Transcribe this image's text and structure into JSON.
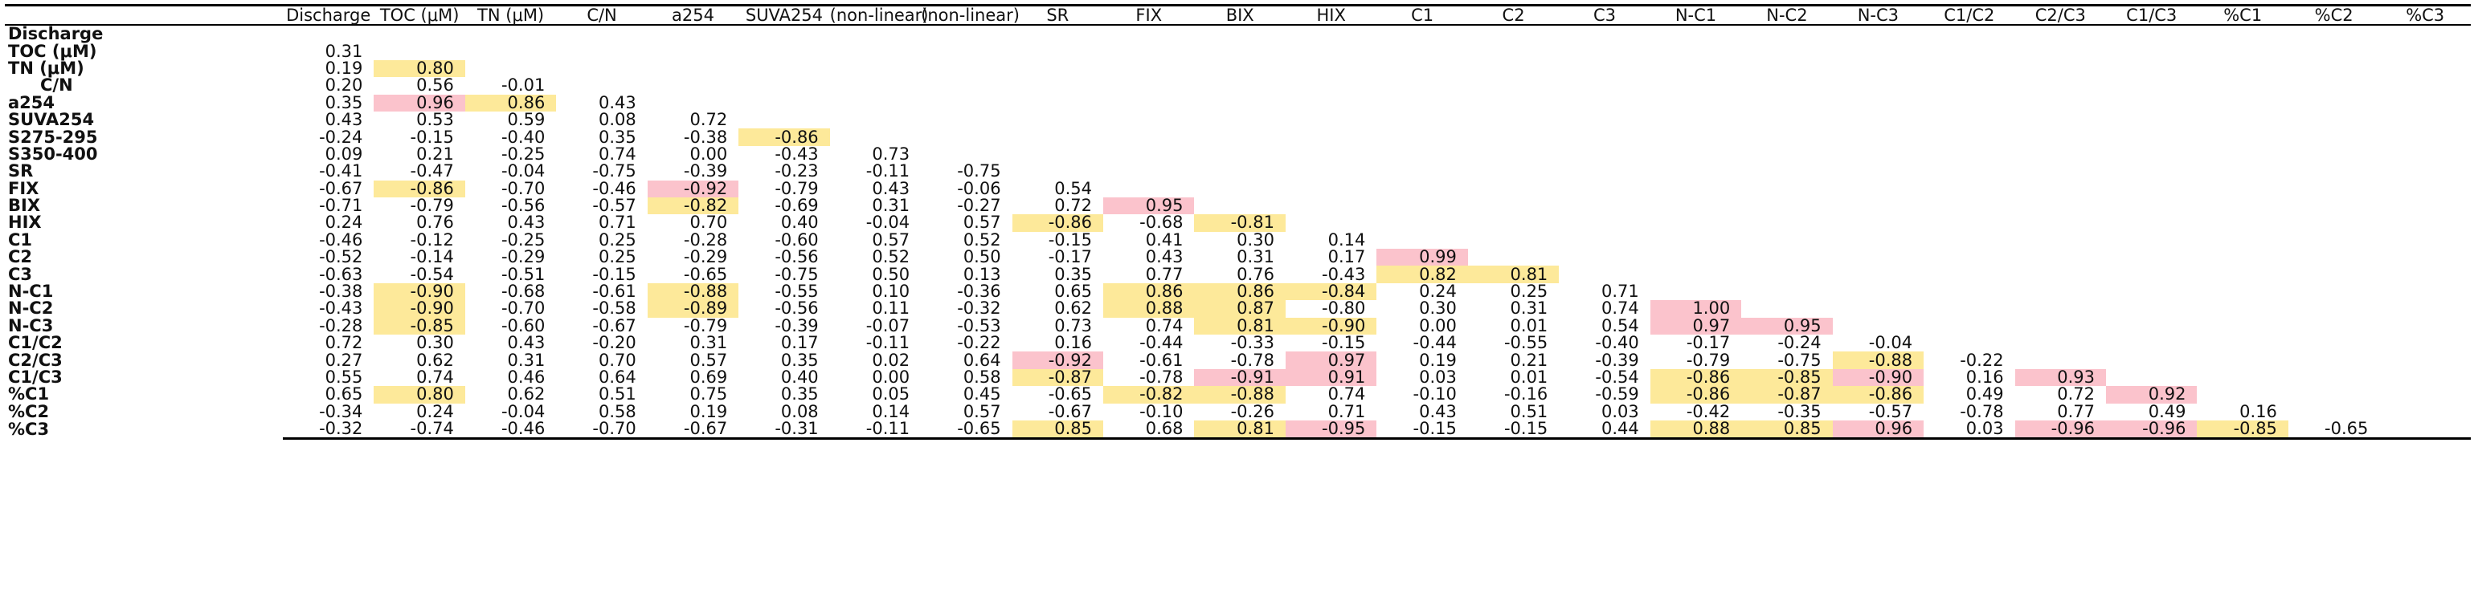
{
  "columns": [
    "Discharge",
    "TOC (μM)",
    "TN (μM)",
    "C/N",
    "a254",
    "SUVA254",
    "S275-295 (non-linear)",
    "S350-400 (non-linear)",
    "SR",
    "FIX",
    "BIX",
    "HIX",
    "C1",
    "C2",
    "C3",
    "N-C1",
    "N-C2",
    "N-C3",
    "C1/C2",
    "C2/C3",
    "C1/C3",
    "%C1",
    "%C2",
    "%C3"
  ],
  "column_display": [
    "Discharge",
    "TOC (μM)",
    "TN (μM)",
    "C/N",
    "a254",
    "SUVA254",
    "(non-linear)",
    "(non-linear)",
    "SR",
    "FIX",
    "BIX",
    "HIX",
    "C1",
    "C2",
    "C3",
    "N-C1",
    "N-C2",
    "N-C3",
    "C1/C2",
    "C2/C3",
    "C1/C3",
    "%C1",
    "%C2",
    "%C3"
  ],
  "rows": [
    {
      "label": "Discharge",
      "cells": []
    },
    {
      "label": "TOC (μM)",
      "cells": [
        {
          "v": "0.31"
        }
      ]
    },
    {
      "label": "TN (μM)",
      "cells": [
        {
          "v": "0.19"
        },
        {
          "v": "0.80",
          "h": "y"
        }
      ]
    },
    {
      "label": "C/N",
      "indent": true,
      "cells": [
        {
          "v": "0.20"
        },
        {
          "v": "0.56"
        },
        {
          "v": "-0.01"
        }
      ]
    },
    {
      "label": "a254",
      "cells": [
        {
          "v": "0.35"
        },
        {
          "v": "0.96",
          "h": "p"
        },
        {
          "v": "0.86",
          "h": "y"
        },
        {
          "v": "0.43"
        }
      ]
    },
    {
      "label": "SUVA254",
      "cells": [
        {
          "v": "0.43"
        },
        {
          "v": "0.53"
        },
        {
          "v": "0.59"
        },
        {
          "v": "0.08"
        },
        {
          "v": "0.72"
        }
      ]
    },
    {
      "label": "S275-295",
      "cells": [
        {
          "v": "-0.24"
        },
        {
          "v": "-0.15"
        },
        {
          "v": "-0.40"
        },
        {
          "v": "0.35"
        },
        {
          "v": "-0.38"
        },
        {
          "v": "-0.86",
          "h": "y"
        }
      ]
    },
    {
      "label": "S350-400",
      "cells": [
        {
          "v": "0.09"
        },
        {
          "v": "0.21"
        },
        {
          "v": "-0.25"
        },
        {
          "v": "0.74"
        },
        {
          "v": "0.00"
        },
        {
          "v": "-0.43"
        },
        {
          "v": "0.73"
        }
      ]
    },
    {
      "label": "SR",
      "cells": [
        {
          "v": "-0.41"
        },
        {
          "v": "-0.47"
        },
        {
          "v": "-0.04"
        },
        {
          "v": "-0.75"
        },
        {
          "v": "-0.39"
        },
        {
          "v": "-0.23"
        },
        {
          "v": "-0.11"
        },
        {
          "v": "-0.75"
        }
      ]
    },
    {
      "label": "FIX",
      "cells": [
        {
          "v": "-0.67"
        },
        {
          "v": "-0.86",
          "h": "y"
        },
        {
          "v": "-0.70"
        },
        {
          "v": "-0.46"
        },
        {
          "v": "-0.92",
          "h": "p"
        },
        {
          "v": "-0.79"
        },
        {
          "v": "0.43"
        },
        {
          "v": "-0.06"
        },
        {
          "v": "0.54"
        }
      ]
    },
    {
      "label": "BIX",
      "cells": [
        {
          "v": "-0.71"
        },
        {
          "v": "-0.79"
        },
        {
          "v": "-0.56"
        },
        {
          "v": "-0.57"
        },
        {
          "v": "-0.82",
          "h": "y"
        },
        {
          "v": "-0.69"
        },
        {
          "v": "0.31"
        },
        {
          "v": "-0.27"
        },
        {
          "v": "0.72"
        },
        {
          "v": "0.95",
          "h": "p"
        }
      ]
    },
    {
      "label": "HIX",
      "cells": [
        {
          "v": "0.24"
        },
        {
          "v": "0.76"
        },
        {
          "v": "0.43"
        },
        {
          "v": "0.71"
        },
        {
          "v": "0.70"
        },
        {
          "v": "0.40"
        },
        {
          "v": "-0.04"
        },
        {
          "v": "0.57"
        },
        {
          "v": "-0.86",
          "h": "y"
        },
        {
          "v": "-0.68"
        },
        {
          "v": "-0.81",
          "h": "y"
        }
      ]
    },
    {
      "label": "C1",
      "cells": [
        {
          "v": "-0.46"
        },
        {
          "v": "-0.12"
        },
        {
          "v": "-0.25"
        },
        {
          "v": "0.25"
        },
        {
          "v": "-0.28"
        },
        {
          "v": "-0.60"
        },
        {
          "v": "0.57"
        },
        {
          "v": "0.52"
        },
        {
          "v": "-0.15"
        },
        {
          "v": "0.41"
        },
        {
          "v": "0.30"
        },
        {
          "v": "0.14"
        }
      ]
    },
    {
      "label": "C2",
      "cells": [
        {
          "v": "-0.52"
        },
        {
          "v": "-0.14"
        },
        {
          "v": "-0.29"
        },
        {
          "v": "0.25"
        },
        {
          "v": "-0.29"
        },
        {
          "v": "-0.56"
        },
        {
          "v": "0.52"
        },
        {
          "v": "0.50"
        },
        {
          "v": "-0.17"
        },
        {
          "v": "0.43"
        },
        {
          "v": "0.31"
        },
        {
          "v": "0.17"
        },
        {
          "v": "0.99",
          "h": "p"
        }
      ]
    },
    {
      "label": "C3",
      "cells": [
        {
          "v": "-0.63"
        },
        {
          "v": "-0.54"
        },
        {
          "v": "-0.51"
        },
        {
          "v": "-0.15"
        },
        {
          "v": "-0.65"
        },
        {
          "v": "-0.75"
        },
        {
          "v": "0.50"
        },
        {
          "v": "0.13"
        },
        {
          "v": "0.35"
        },
        {
          "v": "0.77"
        },
        {
          "v": "0.76"
        },
        {
          "v": "-0.43"
        },
        {
          "v": "0.82",
          "h": "y"
        },
        {
          "v": "0.81",
          "h": "y"
        }
      ]
    },
    {
      "label": "N-C1",
      "cells": [
        {
          "v": "-0.38"
        },
        {
          "v": "-0.90",
          "h": "y"
        },
        {
          "v": "-0.68"
        },
        {
          "v": "-0.61"
        },
        {
          "v": "-0.88",
          "h": "y"
        },
        {
          "v": "-0.55"
        },
        {
          "v": "0.10"
        },
        {
          "v": "-0.36"
        },
        {
          "v": "0.65"
        },
        {
          "v": "0.86",
          "h": "y"
        },
        {
          "v": "0.86",
          "h": "y"
        },
        {
          "v": "-0.84",
          "h": "y"
        },
        {
          "v": "0.24"
        },
        {
          "v": "0.25"
        },
        {
          "v": "0.71"
        }
      ]
    },
    {
      "label": "N-C2",
      "cells": [
        {
          "v": "-0.43"
        },
        {
          "v": "-0.90",
          "h": "y"
        },
        {
          "v": "-0.70"
        },
        {
          "v": "-0.58"
        },
        {
          "v": "-0.89",
          "h": "y"
        },
        {
          "v": "-0.56"
        },
        {
          "v": "0.11"
        },
        {
          "v": "-0.32"
        },
        {
          "v": "0.62"
        },
        {
          "v": "0.88",
          "h": "y"
        },
        {
          "v": "0.87",
          "h": "y"
        },
        {
          "v": "-0.80"
        },
        {
          "v": "0.30"
        },
        {
          "v": "0.31"
        },
        {
          "v": "0.74"
        },
        {
          "v": "1.00",
          "h": "p"
        }
      ]
    },
    {
      "label": "N-C3",
      "cells": [
        {
          "v": "-0.28"
        },
        {
          "v": "-0.85",
          "h": "y"
        },
        {
          "v": "-0.60"
        },
        {
          "v": "-0.67"
        },
        {
          "v": "-0.79"
        },
        {
          "v": "-0.39"
        },
        {
          "v": "-0.07"
        },
        {
          "v": "-0.53"
        },
        {
          "v": "0.73"
        },
        {
          "v": "0.74"
        },
        {
          "v": "0.81",
          "h": "y"
        },
        {
          "v": "-0.90",
          "h": "y"
        },
        {
          "v": "0.00"
        },
        {
          "v": "0.01"
        },
        {
          "v": "0.54"
        },
        {
          "v": "0.97",
          "h": "p"
        },
        {
          "v": "0.95",
          "h": "p"
        }
      ]
    },
    {
      "label": "C1/C2",
      "cells": [
        {
          "v": "0.72"
        },
        {
          "v": "0.30"
        },
        {
          "v": "0.43"
        },
        {
          "v": "-0.20"
        },
        {
          "v": "0.31"
        },
        {
          "v": "0.17"
        },
        {
          "v": "-0.11"
        },
        {
          "v": "-0.22"
        },
        {
          "v": "0.16"
        },
        {
          "v": "-0.44"
        },
        {
          "v": "-0.33"
        },
        {
          "v": "-0.15"
        },
        {
          "v": "-0.44"
        },
        {
          "v": "-0.55"
        },
        {
          "v": "-0.40"
        },
        {
          "v": "-0.17"
        },
        {
          "v": "-0.24"
        },
        {
          "v": "-0.04"
        }
      ]
    },
    {
      "label": "C2/C3",
      "cells": [
        {
          "v": "0.27"
        },
        {
          "v": "0.62"
        },
        {
          "v": "0.31"
        },
        {
          "v": "0.70"
        },
        {
          "v": "0.57"
        },
        {
          "v": "0.35"
        },
        {
          "v": "0.02"
        },
        {
          "v": "0.64"
        },
        {
          "v": "-0.92",
          "h": "p"
        },
        {
          "v": "-0.61"
        },
        {
          "v": "-0.78"
        },
        {
          "v": "0.97",
          "h": "p"
        },
        {
          "v": "0.19"
        },
        {
          "v": "0.21"
        },
        {
          "v": "-0.39"
        },
        {
          "v": "-0.79"
        },
        {
          "v": "-0.75"
        },
        {
          "v": "-0.88",
          "h": "y"
        },
        {
          "v": "-0.22"
        }
      ]
    },
    {
      "label": "C1/C3",
      "cells": [
        {
          "v": "0.55"
        },
        {
          "v": "0.74"
        },
        {
          "v": "0.46"
        },
        {
          "v": "0.64"
        },
        {
          "v": "0.69"
        },
        {
          "v": "0.40"
        },
        {
          "v": "0.00"
        },
        {
          "v": "0.58"
        },
        {
          "v": "-0.87",
          "h": "y"
        },
        {
          "v": "-0.78"
        },
        {
          "v": "-0.91",
          "h": "p"
        },
        {
          "v": "0.91",
          "h": "p"
        },
        {
          "v": "0.03"
        },
        {
          "v": "0.01"
        },
        {
          "v": "-0.54"
        },
        {
          "v": "-0.86",
          "h": "y"
        },
        {
          "v": "-0.85",
          "h": "y"
        },
        {
          "v": "-0.90",
          "h": "p"
        },
        {
          "v": "0.16"
        },
        {
          "v": "0.93",
          "h": "p"
        }
      ]
    },
    {
      "label": "%C1",
      "cells": [
        {
          "v": "0.65"
        },
        {
          "v": "0.80",
          "h": "y"
        },
        {
          "v": "0.62"
        },
        {
          "v": "0.51"
        },
        {
          "v": "0.75"
        },
        {
          "v": "0.35"
        },
        {
          "v": "0.05"
        },
        {
          "v": "0.45"
        },
        {
          "v": "-0.65"
        },
        {
          "v": "-0.82",
          "h": "y"
        },
        {
          "v": "-0.88",
          "h": "y"
        },
        {
          "v": "0.74"
        },
        {
          "v": "-0.10"
        },
        {
          "v": "-0.16"
        },
        {
          "v": "-0.59"
        },
        {
          "v": "-0.86",
          "h": "y"
        },
        {
          "v": "-0.87",
          "h": "y"
        },
        {
          "v": "-0.86",
          "h": "y"
        },
        {
          "v": "0.49"
        },
        {
          "v": "0.72"
        },
        {
          "v": "0.92",
          "h": "p"
        }
      ]
    },
    {
      "label": "%C2",
      "cells": [
        {
          "v": "-0.34"
        },
        {
          "v": "0.24"
        },
        {
          "v": "-0.04"
        },
        {
          "v": "0.58"
        },
        {
          "v": "0.19"
        },
        {
          "v": "0.08"
        },
        {
          "v": "0.14"
        },
        {
          "v": "0.57"
        },
        {
          "v": "-0.67"
        },
        {
          "v": "-0.10"
        },
        {
          "v": "-0.26"
        },
        {
          "v": "0.71"
        },
        {
          "v": "0.43"
        },
        {
          "v": "0.51"
        },
        {
          "v": "0.03"
        },
        {
          "v": "-0.42"
        },
        {
          "v": "-0.35"
        },
        {
          "v": "-0.57"
        },
        {
          "v": "-0.78"
        },
        {
          "v": "0.77"
        },
        {
          "v": "0.49"
        },
        {
          "v": "0.16"
        }
      ]
    },
    {
      "label": "%C3",
      "cells": [
        {
          "v": "-0.32"
        },
        {
          "v": "-0.74"
        },
        {
          "v": "-0.46"
        },
        {
          "v": "-0.70"
        },
        {
          "v": "-0.67"
        },
        {
          "v": "-0.31"
        },
        {
          "v": "-0.11"
        },
        {
          "v": "-0.65"
        },
        {
          "v": "0.85",
          "h": "y"
        },
        {
          "v": "0.68"
        },
        {
          "v": "0.81",
          "h": "y"
        },
        {
          "v": "-0.95",
          "h": "p"
        },
        {
          "v": "-0.15"
        },
        {
          "v": "-0.15"
        },
        {
          "v": "0.44"
        },
        {
          "v": "0.88",
          "h": "y"
        },
        {
          "v": "0.85",
          "h": "y"
        },
        {
          "v": "0.96",
          "h": "p"
        },
        {
          "v": "0.03"
        },
        {
          "v": "-0.96",
          "h": "p"
        },
        {
          "v": "-0.96",
          "h": "p"
        },
        {
          "v": "-0.85",
          "h": "y"
        },
        {
          "v": "-0.65"
        }
      ]
    }
  ],
  "colors": {
    "highlight_yellow": "#fde99a",
    "highlight_pink": "#fbc3cc"
  }
}
